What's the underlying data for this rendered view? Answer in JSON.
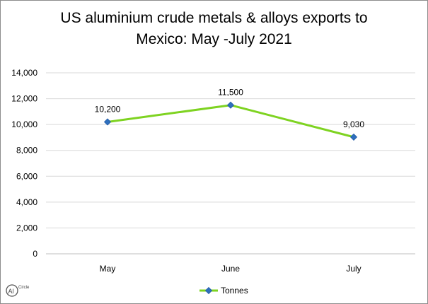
{
  "chart_data": {
    "type": "line",
    "title_line1": "US aluminium crude metals & alloys exports to",
    "title_line2": "Mexico: May -July 2021",
    "categories": [
      "May",
      "June",
      "July"
    ],
    "series": [
      {
        "name": "Tonnes",
        "values": [
          10200,
          11500,
          9030
        ],
        "color": "#7ed321",
        "marker_color": "#2e6fbd"
      }
    ],
    "data_labels": [
      "10,200",
      "11,500",
      "9,030"
    ],
    "y_ticks": [
      "0",
      "2,000",
      "4,000",
      "6,000",
      "8,000",
      "10,000",
      "12,000",
      "14,000"
    ],
    "ylim": [
      0,
      14000
    ],
    "grid": true,
    "legend_position": "bottom",
    "xlabel": "",
    "ylabel": ""
  },
  "logo": {
    "text_a": "Al",
    "text_b": "Circle",
    "icon": "alcircle-logo"
  }
}
